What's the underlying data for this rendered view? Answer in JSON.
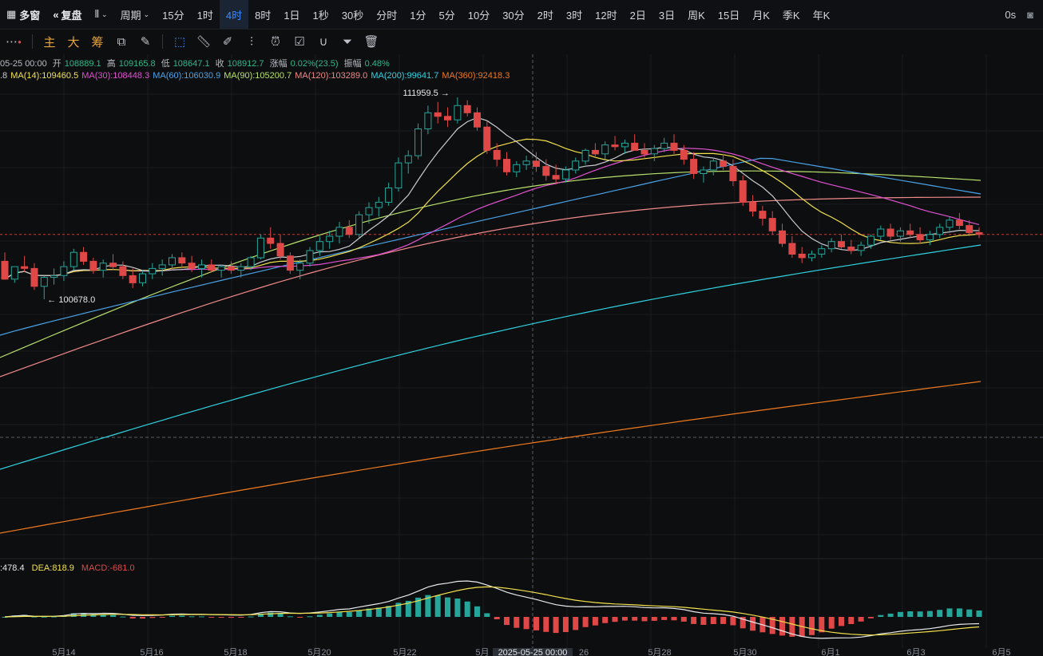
{
  "topbar": {
    "multi_window": "多窗",
    "replay": "复盘",
    "period": "周期",
    "periods": [
      "15分",
      "1时",
      "4时",
      "8时",
      "1日",
      "1秒",
      "30秒",
      "分时",
      "1分",
      "5分",
      "10分",
      "30分",
      "2时",
      "3时",
      "12时",
      "2日",
      "3日",
      "周K",
      "15日",
      "月K",
      "季K",
      "年K"
    ],
    "active_period": "4时",
    "latency": "0s"
  },
  "toolbar": {
    "main": "主",
    "big": "大",
    "chips": "筹"
  },
  "ohlc": {
    "date": "05-25 00:00",
    "open_label": "开",
    "open": "108889.1",
    "high_label": "高",
    "high": "109165.8",
    "low_label": "低",
    "low": "108647.1",
    "close_label": "收",
    "close": "108912.7",
    "change_label": "涨幅",
    "change": "0.02%(23.5)",
    "amp_label": "振幅",
    "amp": "0.48%"
  },
  "ma_legend": [
    {
      "label": ".8",
      "color": "#c9ccd1"
    },
    {
      "label": "MA(14):109460.5",
      "color": "#f2e14c"
    },
    {
      "label": "MA(30):108448.3",
      "color": "#e052d0"
    },
    {
      "label": "MA(60):106030.9",
      "color": "#4aa3e8"
    },
    {
      "label": "MA(90):105200.7",
      "color": "#b8e06a"
    },
    {
      "label": "MA(120):103289.0",
      "color": "#f08a8a"
    },
    {
      "label": "MA(200):99641.7",
      "color": "#2fd3e0"
    },
    {
      "label": "MA(360):92418.3",
      "color": "#f07a1e"
    }
  ],
  "macd_legend": {
    "dif": ":478.4",
    "dea": "DEA:818.9",
    "macd": "MACD:-681.0"
  },
  "annotations": {
    "high_mark": "111959.5 →",
    "low_mark": "← 100678.0"
  },
  "crosshair_date": "2025-05-25 00:00",
  "chart_data": {
    "type": "candlestick",
    "interval": "4时",
    "x_ticks": [
      "5月14",
      "5月16",
      "5月18",
      "5月20",
      "5月22",
      "5月",
      "26",
      "5月28",
      "5月30",
      "6月1",
      "6月3",
      "6月5"
    ],
    "price_high": 111959.5,
    "price_low": 100678.0,
    "candles": [
      [
        102800,
        103300,
        101900,
        101800
      ],
      [
        101800,
        102500,
        101600,
        102500
      ],
      [
        102500,
        103100,
        102200,
        102400
      ],
      [
        102400,
        102700,
        101200,
        101400
      ],
      [
        101400,
        102000,
        100678,
        101900
      ],
      [
        101900,
        102400,
        101500,
        102000
      ],
      [
        102000,
        102800,
        101700,
        102500
      ],
      [
        102500,
        103500,
        102300,
        103300
      ],
      [
        103300,
        103600,
        102600,
        102800
      ],
      [
        102800,
        103000,
        102100,
        102300
      ],
      [
        102300,
        102900,
        101900,
        102700
      ],
      [
        102700,
        103200,
        102300,
        102500
      ],
      [
        102500,
        102800,
        101800,
        102000
      ],
      [
        102000,
        102400,
        101300,
        101600
      ],
      [
        101600,
        102300,
        101400,
        102100
      ],
      [
        102100,
        102700,
        101800,
        102400
      ],
      [
        102400,
        102900,
        102000,
        102600
      ],
      [
        102600,
        103200,
        102300,
        103000
      ],
      [
        103000,
        103300,
        102400,
        102700
      ],
      [
        102700,
        103100,
        102200,
        102400
      ],
      [
        102400,
        102900,
        101900,
        102600
      ],
      [
        102600,
        102900,
        102200,
        102300
      ],
      [
        102300,
        102600,
        101900,
        102500
      ],
      [
        102500,
        102800,
        102100,
        102300
      ],
      [
        102300,
        102700,
        101900,
        102500
      ],
      [
        102500,
        103100,
        102300,
        103000
      ],
      [
        103000,
        104300,
        102900,
        104100
      ],
      [
        104100,
        104700,
        103500,
        103800
      ],
      [
        103800,
        104300,
        102900,
        103100
      ],
      [
        103100,
        103300,
        102100,
        102300
      ],
      [
        102300,
        102900,
        101800,
        102700
      ],
      [
        102700,
        103600,
        102500,
        103400
      ],
      [
        103400,
        104200,
        103100,
        103900
      ],
      [
        103900,
        104500,
        103500,
        104200
      ],
      [
        104200,
        105000,
        103800,
        104700
      ],
      [
        104700,
        105100,
        104100,
        104300
      ],
      [
        104300,
        105600,
        104100,
        105400
      ],
      [
        105400,
        106100,
        104900,
        105800
      ],
      [
        105800,
        106400,
        105300,
        106100
      ],
      [
        106100,
        107200,
        105900,
        106900
      ],
      [
        106900,
        108600,
        106700,
        108300
      ],
      [
        108300,
        109000,
        107700,
        108700
      ],
      [
        108700,
        110500,
        108500,
        110200
      ],
      [
        110200,
        111500,
        109900,
        111100
      ],
      [
        111100,
        111700,
        110500,
        110900
      ],
      [
        110900,
        111400,
        110300,
        110700
      ],
      [
        110700,
        111959.5,
        110500,
        111500
      ],
      [
        111500,
        111800,
        110900,
        111100
      ],
      [
        111100,
        111400,
        110100,
        110300
      ],
      [
        110300,
        110600,
        108800,
        109000
      ],
      [
        109000,
        109400,
        108100,
        108500
      ],
      [
        108500,
        108900,
        107600,
        107800
      ],
      [
        107800,
        108400,
        107500,
        108200
      ],
      [
        108200,
        108700,
        107900,
        108400
      ],
      [
        108400,
        108900,
        107800,
        108100
      ],
      [
        108100,
        108500,
        107300,
        107600
      ],
      [
        107600,
        108200,
        107100,
        107400
      ],
      [
        107400,
        108100,
        107200,
        107900
      ],
      [
        107900,
        108600,
        107700,
        108400
      ],
      [
        108400,
        109100,
        108200,
        109000
      ],
      [
        109000,
        109400,
        108600,
        108800
      ],
      [
        108800,
        109500,
        108500,
        109300
      ],
      [
        109300,
        109800,
        109000,
        109200
      ],
      [
        109200,
        109600,
        108800,
        109400
      ],
      [
        109400,
        109900,
        109100,
        109000
      ],
      [
        109000,
        109400,
        108600,
        108800
      ],
      [
        108800,
        109300,
        108400,
        109100
      ],
      [
        109100,
        109700,
        108900,
        109400
      ],
      [
        109400,
        109900,
        108800,
        109000
      ],
      [
        109000,
        109300,
        108200,
        108500
      ],
      [
        108500,
        108900,
        107400,
        107700
      ],
      [
        107700,
        108100,
        107200,
        107900
      ],
      [
        107900,
        108600,
        107600,
        108400
      ],
      [
        108400,
        108800,
        107900,
        108100
      ],
      [
        108100,
        108500,
        107000,
        107300
      ],
      [
        107300,
        107600,
        105900,
        106100
      ],
      [
        106100,
        106500,
        105300,
        105600
      ],
      [
        105600,
        105900,
        104800,
        105200
      ],
      [
        105200,
        105600,
        104300,
        104500
      ],
      [
        104500,
        104900,
        103600,
        103800
      ],
      [
        103800,
        104200,
        103000,
        103200
      ],
      [
        103200,
        103600,
        102700,
        103000
      ],
      [
        103000,
        103400,
        102800,
        103200
      ],
      [
        103200,
        103700,
        103000,
        103500
      ],
      [
        103500,
        104100,
        103300,
        103900
      ],
      [
        103900,
        104300,
        103500,
        103600
      ],
      [
        103600,
        104000,
        103200,
        103400
      ],
      [
        103400,
        103900,
        103100,
        103700
      ],
      [
        103700,
        104300,
        103500,
        104200
      ],
      [
        104200,
        104800,
        104000,
        104600
      ],
      [
        104600,
        104900,
        104000,
        104200
      ],
      [
        104200,
        104700,
        103900,
        104500
      ],
      [
        104500,
        104900,
        104100,
        104300
      ],
      [
        104300,
        104700,
        103800,
        104000
      ],
      [
        104000,
        104500,
        103700,
        104300
      ],
      [
        104300,
        104900,
        104100,
        104700
      ],
      [
        104700,
        105300,
        104500,
        105100
      ],
      [
        105100,
        105500,
        104600,
        104800
      ],
      [
        104800,
        105100,
        104200,
        104400
      ],
      [
        104400,
        104700,
        104100,
        104300
      ]
    ],
    "ma": [
      {
        "name": "MA(14)",
        "color": "#f2e14c",
        "values": [
          102400,
          102350,
          102300,
          102250,
          102200,
          102300,
          102400,
          102500,
          102550,
          102500,
          102450,
          102450,
          102400,
          102350,
          102300,
          102350,
          102400,
          102450,
          102500,
          102500,
          102480,
          102470,
          102460,
          102450,
          102440,
          102470,
          102600,
          102750,
          102850,
          102900,
          102950,
          103050,
          103200,
          103350,
          103500,
          103650,
          103850,
          104050,
          104250,
          104450,
          104750,
          105150,
          105600,
          106100,
          106600,
          107050,
          107500,
          107950,
          108350,
          108650,
          108850,
          108950,
          109000,
          109050,
          109050,
          108950,
          108850,
          108750,
          108650,
          108600,
          108550,
          108550,
          108600,
          108650,
          108700,
          108750,
          108800,
          108850,
          108900,
          108950,
          108900,
          108800,
          108700,
          108600,
          108450,
          108200,
          107900,
          107550,
          107150,
          106750,
          106350,
          105950,
          105550,
          105150,
          104850,
          104550,
          104300,
          104100,
          103950,
          103850,
          103800,
          103800,
          103850,
          103900,
          103950,
          104000,
          104100,
          104200,
          104300,
          104350
        ]
      }
    ]
  }
}
